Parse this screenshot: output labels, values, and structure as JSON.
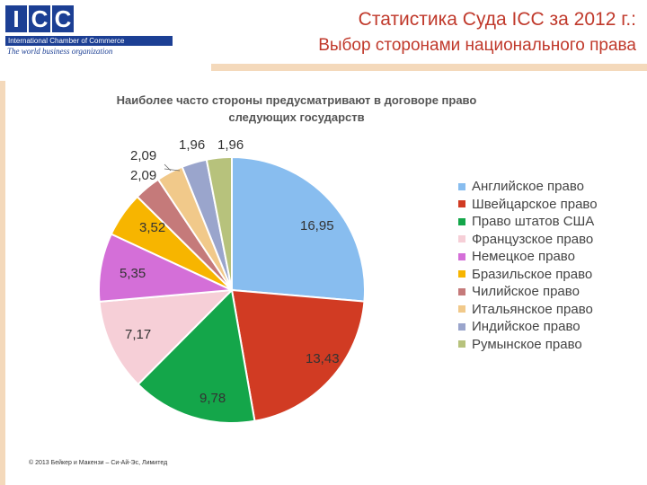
{
  "logo": {
    "letters": [
      "I",
      "C",
      "C"
    ],
    "org_name": "International Chamber of Commerce",
    "tagline": "The world business organization"
  },
  "header": {
    "title": "Статистика Суда ICC за 2012 г.:",
    "subtitle": "Выбор сторонами национального права"
  },
  "colors": {
    "title_red": "#c0392b",
    "accent_beige": "#f4d9bb",
    "brand_blue": "#1c3f94"
  },
  "chart_data": {
    "type": "pie",
    "title_lines": [
      "Наиболее часто стороны предусматривают в договоре право",
      "следующих государств"
    ],
    "categories": [
      "Английское право",
      "Швейцарское право",
      "Право штатов США",
      "Французское право",
      "Немецкое право",
      "Бразильское право",
      "Чилийское право",
      "Итальянское право",
      "Индийское право",
      "Румынское право"
    ],
    "values": [
      16.95,
      13.43,
      9.78,
      7.17,
      5.35,
      3.52,
      2.09,
      2.09,
      1.96,
      1.96
    ],
    "labels": [
      "16,95",
      "13,43",
      "9,78",
      "7,17",
      "5,35",
      "3,52",
      "2,09",
      "2,09",
      "1,96",
      "1,96"
    ],
    "colors": [
      "#88bdef",
      "#d13b23",
      "#14a64a",
      "#f6cfd7",
      "#d46fd8",
      "#f7b500",
      "#c57a7a",
      "#f1c98a",
      "#9aa5cc",
      "#b7c27c"
    ],
    "start": "12 o'clock",
    "direction": "clockwise",
    "legend_position": "right"
  },
  "footer": {
    "copyright": "© 2013 Бейкер и Макензи – Си-Ай-Эс, Лимитед"
  }
}
